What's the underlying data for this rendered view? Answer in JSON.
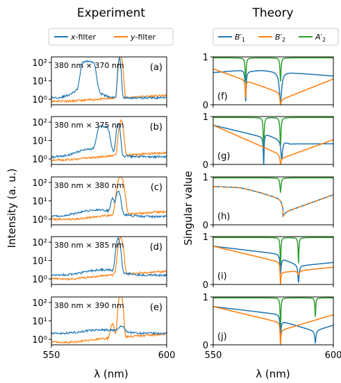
{
  "columns": {
    "left_title": "Experiment",
    "right_title": "Theory"
  },
  "colors": {
    "blue": "#1f77b4",
    "orange": "#ff7f0e",
    "green": "#2ca02c"
  },
  "chart_data": [
    {
      "type": "line",
      "panel": "experiment",
      "title": "Experiment",
      "xlabel": "λ (nm)",
      "ylabel": "Intensity (a. u.)",
      "xlim": [
        550,
        600
      ],
      "ylim_log": [
        0.5,
        200
      ],
      "yscale": "log",
      "xticks": [
        "550",
        "600"
      ],
      "yticks": [
        "10⁰",
        "10¹",
        "10²"
      ],
      "legend": {
        "position": "top",
        "entries": [
          "x-filter",
          "y-filter"
        ]
      },
      "subplots": [
        {
          "label": "(a)",
          "annotation": "380 nm × 370 nm"
        },
        {
          "label": "(b)",
          "annotation": "380 nm × 375 nm"
        },
        {
          "label": "(c)",
          "annotation": "380 nm × 380 nm"
        },
        {
          "label": "(d)",
          "annotation": "380 nm × 385 nm"
        },
        {
          "label": "(e)",
          "annotation": "380 nm × 390 nm"
        }
      ]
    },
    {
      "type": "line",
      "panel": "theory",
      "title": "Theory",
      "xlabel": "λ (nm)",
      "ylabel": "Singular value",
      "xlim": [
        550,
        600
      ],
      "ylim": [
        0,
        1
      ],
      "xticks": [
        "550",
        "600"
      ],
      "yticks": [
        "0",
        "1"
      ],
      "legend": {
        "position": "top",
        "entries": [
          "B′₁",
          "B′₂",
          "A′₂"
        ]
      },
      "subplots": [
        {
          "label": "(f)"
        },
        {
          "label": "(g)"
        },
        {
          "label": "(h)"
        },
        {
          "label": "(i)"
        },
        {
          "label": "(j)"
        }
      ]
    }
  ]
}
